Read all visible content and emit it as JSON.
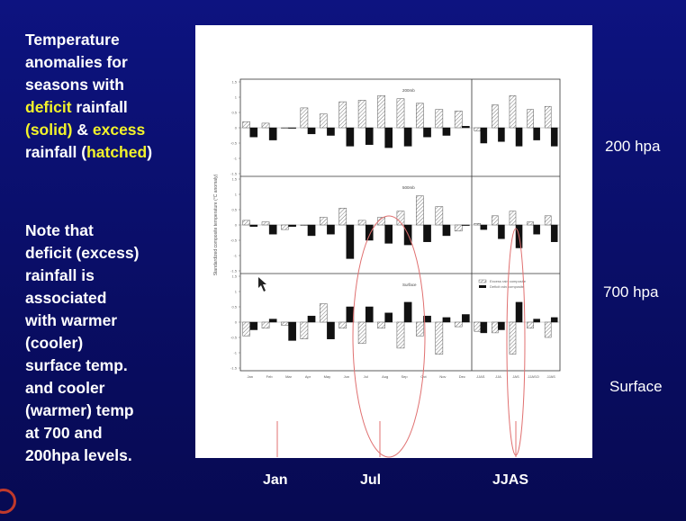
{
  "slide": {
    "title_lines": [
      {
        "parts": [
          {
            "t": "Temperature",
            "c": "white"
          }
        ]
      },
      {
        "parts": [
          {
            "t": "anomalies for",
            "c": "white"
          }
        ]
      },
      {
        "parts": [
          {
            "t": "seasons with",
            "c": "white"
          }
        ]
      },
      {
        "parts": [
          {
            "t": "deficit",
            "c": "yellow"
          },
          {
            "t": " rainfall",
            "c": "white"
          }
        ]
      },
      {
        "parts": [
          {
            "t": "(solid)",
            "c": "yellow"
          },
          {
            "t": " & ",
            "c": "white"
          },
          {
            "t": "excess",
            "c": "yellow"
          }
        ]
      },
      {
        "parts": [
          {
            "t": "rainfall (",
            "c": "white"
          },
          {
            "t": "hatched",
            "c": "yellow"
          },
          {
            "t": ")",
            "c": "white"
          }
        ]
      }
    ],
    "note_lines": [
      "Note that",
      "deficit (excess)",
      "rainfall is",
      "associated",
      "with warmer",
      "(cooler)",
      "surface temp.",
      "and  cooler",
      "(warmer) temp",
      "at 700 and",
      "200hpa levels."
    ],
    "level_labels": {
      "l200": "200 hpa",
      "l700": "700 hpa",
      "surface": "Surface"
    },
    "bottom_labels": {
      "jan": "Jan",
      "jul": "Jul",
      "jjas": "JJAS"
    }
  },
  "chart_data": {
    "type": "bar",
    "ylabel": "Standardized composite temperature (°C anomaly)",
    "months": [
      "Jan",
      "Feb",
      "Mar",
      "Apr",
      "May",
      "Jun",
      "Jul",
      "Aug",
      "Sep",
      "Oct",
      "Nov",
      "Dec"
    ],
    "seasons": [
      "JJAS",
      "JJA",
      "JAS",
      "JJASO",
      "JJAS"
    ],
    "ylim": [
      -1.5,
      1.5
    ],
    "yticks": [
      "1.5",
      "1",
      "0.5",
      "0",
      "-0.5",
      "-1",
      "-1.5"
    ],
    "legend": {
      "excess": "Excess rain composite",
      "deficit": "Deficit rain composite"
    },
    "panels": [
      {
        "label": "200mb",
        "excess_months": [
          0.2,
          0.15,
          0.0,
          0.65,
          0.45,
          0.85,
          0.9,
          1.05,
          0.95,
          0.8,
          0.6,
          0.55
        ],
        "deficit_months": [
          -0.3,
          -0.4,
          0.0,
          -0.2,
          -0.25,
          -0.6,
          -0.55,
          -0.65,
          -0.6,
          -0.3,
          -0.25,
          0.05
        ],
        "excess_seasons": [
          -0.1,
          0.75,
          1.05,
          0.6,
          0.7
        ],
        "deficit_seasons": [
          -0.5,
          -0.45,
          -0.6,
          -0.4,
          -0.6
        ]
      },
      {
        "label": "500mb",
        "excess_months": [
          0.15,
          0.1,
          -0.15,
          0.0,
          0.25,
          0.55,
          0.15,
          0.25,
          0.45,
          0.95,
          0.6,
          -0.2
        ],
        "deficit_months": [
          -0.05,
          -0.3,
          -0.05,
          -0.35,
          -0.3,
          -1.1,
          -0.5,
          -0.6,
          -0.65,
          -0.55,
          -0.35,
          0.0
        ],
        "excess_seasons": [
          0.05,
          0.3,
          0.45,
          0.1,
          0.3
        ],
        "deficit_seasons": [
          -0.15,
          -0.45,
          -0.75,
          -0.3,
          -0.55
        ]
      },
      {
        "label": "Surface",
        "excess_months": [
          -0.45,
          -0.2,
          -0.1,
          -0.55,
          0.6,
          -0.2,
          -0.7,
          -0.2,
          -0.85,
          -0.45,
          -1.05,
          -0.15
        ],
        "deficit_months": [
          -0.25,
          0.1,
          -0.6,
          0.2,
          -0.55,
          0.5,
          0.5,
          0.3,
          0.65,
          0.2,
          0.15,
          0.25
        ],
        "excess_seasons": [
          -0.3,
          -0.35,
          -1.05,
          -0.2,
          -0.5
        ],
        "deficit_seasons": [
          -0.35,
          -0.25,
          0.65,
          0.1,
          0.15
        ]
      }
    ]
  }
}
